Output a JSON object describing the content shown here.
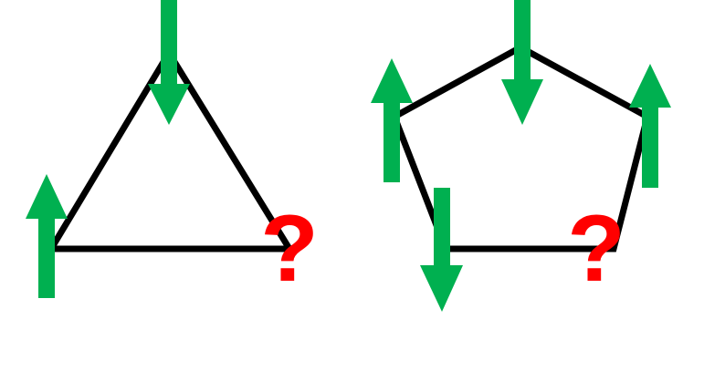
{
  "colors": {
    "background": "#ffffff",
    "edge": "#000000",
    "spin_arrow": "#00b050",
    "frustrated_mark": "#ff0000"
  },
  "triangle": {
    "spins": [
      {
        "direction": "down"
      },
      {
        "direction": "up"
      }
    ],
    "unknown_label": "?"
  },
  "pentagon": {
    "spins": [
      {
        "direction": "down"
      },
      {
        "direction": "up"
      },
      {
        "direction": "up"
      },
      {
        "direction": "down"
      }
    ],
    "unknown_label": "?"
  }
}
